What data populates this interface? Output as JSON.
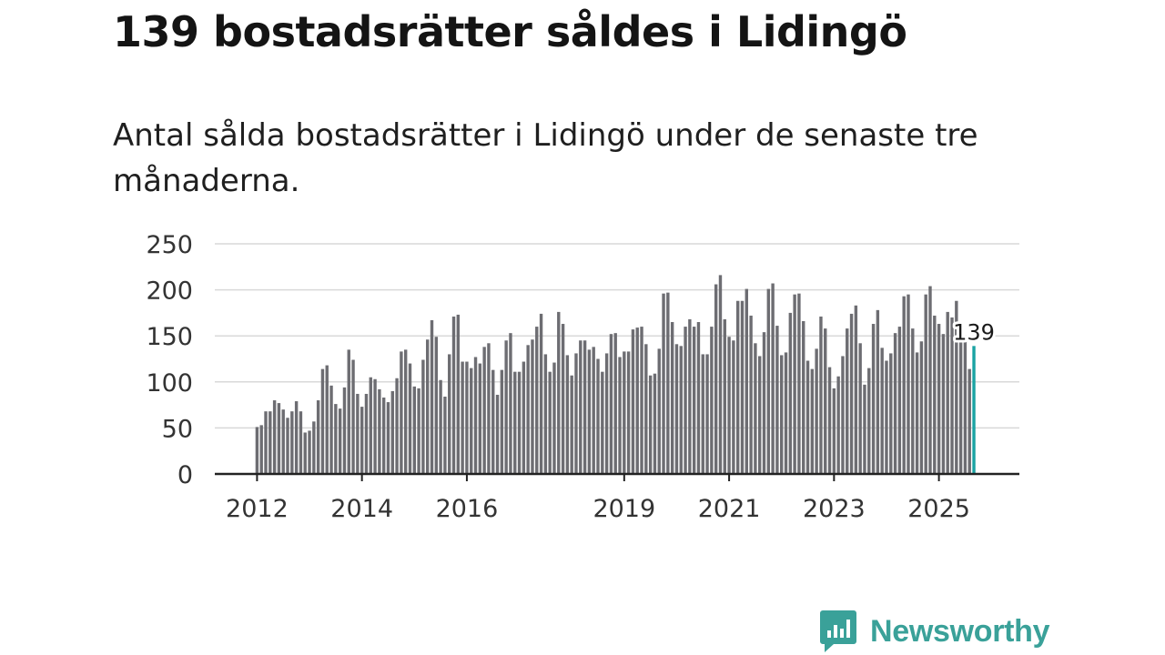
{
  "title": "139 bostadsrätter såldes i Lidingö",
  "subtitle": "Antal sålda bostadsrätter i Lidingö under de senaste tre månaderna.",
  "brand": {
    "name": "Newsworthy",
    "color": "#3aa199"
  },
  "colors": {
    "bar": "#6d6d72",
    "highlight": "#1aa3a3",
    "grid": "#d9d9d9",
    "axis": "#222222"
  },
  "chart_data": {
    "type": "bar",
    "title": "Antal sålda bostadsrätter i Lidingö",
    "xlabel": "",
    "ylabel": "",
    "ylim": [
      0,
      250
    ],
    "yticks": [
      0,
      50,
      100,
      150,
      200,
      250
    ],
    "xlim": [
      2011.75,
      2026.1
    ],
    "x_tick_labels": [
      {
        "label": "2012",
        "year": 2012
      },
      {
        "label": "2014",
        "year": 2014
      },
      {
        "label": "2016",
        "year": 2016
      },
      {
        "label": "2019",
        "year": 2019
      },
      {
        "label": "2021",
        "year": 2021
      },
      {
        "label": "2023",
        "year": 2023
      },
      {
        "label": "2025",
        "year": 2025
      }
    ],
    "start": {
      "year": 2012,
      "month": 1
    },
    "values": [
      51,
      53,
      68,
      68,
      80,
      77,
      70,
      61,
      68,
      79,
      68,
      45,
      47,
      57,
      80,
      114,
      118,
      96,
      76,
      71,
      94,
      135,
      124,
      87,
      73,
      87,
      105,
      103,
      92,
      83,
      78,
      90,
      104,
      133,
      135,
      120,
      95,
      93,
      124,
      146,
      167,
      149,
      102,
      84,
      130,
      171,
      173,
      122,
      122,
      115,
      127,
      120,
      138,
      142,
      113,
      86,
      113,
      145,
      153,
      111,
      111,
      122,
      140,
      146,
      160,
      174,
      130,
      111,
      121,
      176,
      163,
      129,
      107,
      131,
      145,
      145,
      135,
      138,
      125,
      111,
      131,
      152,
      153,
      127,
      133,
      133,
      157,
      159,
      160,
      141,
      107,
      109,
      136,
      196,
      197,
      165,
      141,
      139,
      160,
      168,
      160,
      165,
      130,
      130,
      160,
      206,
      216,
      168,
      149,
      145,
      188,
      188,
      201,
      172,
      142,
      128,
      154,
      201,
      207,
      161,
      129,
      132,
      175,
      195,
      196,
      166,
      123,
      114,
      136,
      171,
      158,
      116,
      93,
      106,
      128,
      158,
      174,
      183,
      142,
      97,
      115,
      163,
      178,
      137,
      123,
      131,
      153,
      160,
      193,
      195,
      158,
      132,
      144,
      195,
      204,
      172,
      163,
      152,
      176,
      170,
      188,
      160,
      146,
      114,
      139
    ],
    "highlight_last": true,
    "annotation": {
      "label": "139",
      "value": 139
    }
  }
}
